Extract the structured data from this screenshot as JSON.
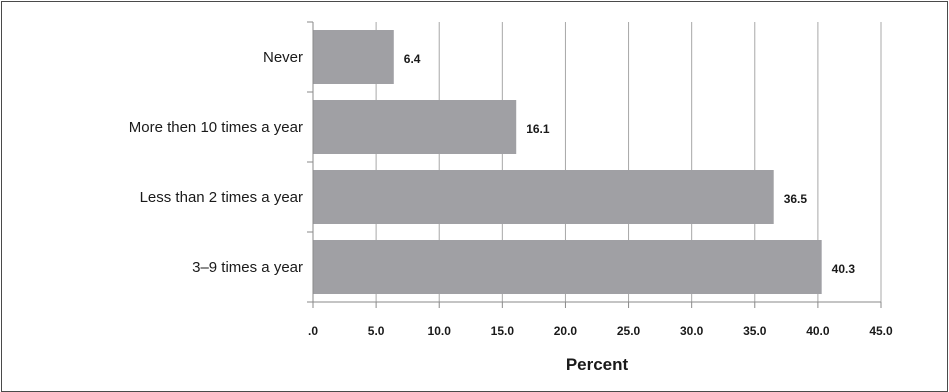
{
  "chart_data": {
    "type": "bar",
    "orientation": "horizontal",
    "categories": [
      "Never",
      "More then 10 times a year",
      "Less than 2 times a year",
      "3–9 times a year"
    ],
    "values": [
      6.4,
      16.1,
      36.5,
      40.3
    ],
    "data_labels": [
      "6.4",
      "16.1",
      "36.5",
      "40.3"
    ],
    "xlabel": "Percent",
    "ylabel": "",
    "xlim": [
      0,
      45
    ],
    "ticks": [
      0,
      5,
      10,
      15,
      20,
      25,
      30,
      35,
      40,
      45
    ],
    "tick_labels": [
      ".0",
      "5.0",
      "10.0",
      "15.0",
      "20.0",
      "25.0",
      "30.0",
      "35.0",
      "40.0",
      "45.0"
    ],
    "grid": "vertical",
    "bar_color": "#a0a0a4",
    "grid_color": "#a8a8a8",
    "axis_color": "#8a8a8a"
  }
}
